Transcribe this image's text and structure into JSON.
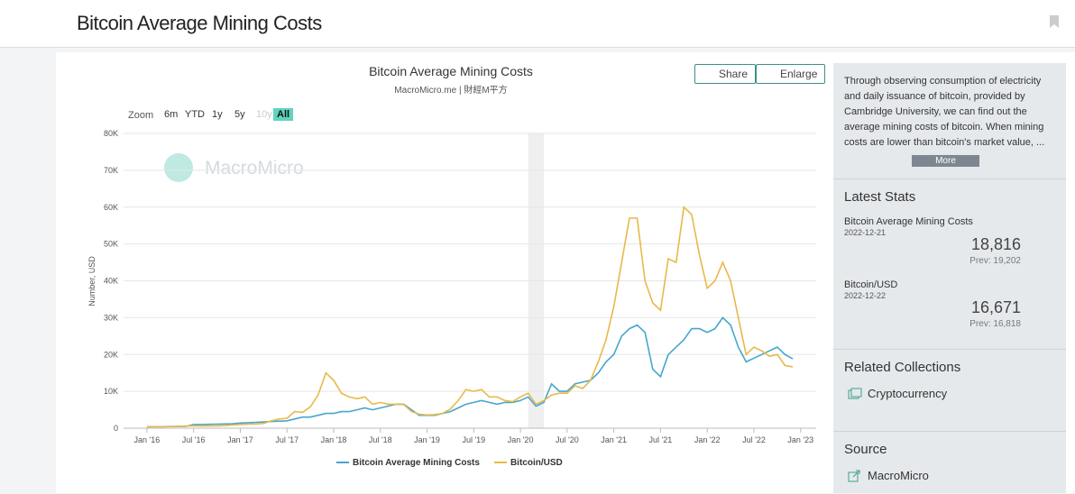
{
  "header": {
    "title": "Bitcoin Average Mining Costs"
  },
  "toolbar": {
    "share": "Share",
    "enlarge": "Enlarge",
    "zoom": "Zoom",
    "ranges": [
      "6m",
      "YTD",
      "1y",
      "5y",
      "10y",
      "All"
    ]
  },
  "chart_data": {
    "type": "line",
    "title": "Bitcoin Average Mining Costs",
    "subtitle": "MacroMicro.me | 財經M平方",
    "watermark": "MacroMicro",
    "y_label": "Number, USD",
    "x": [
      "2016-01",
      "2016-02",
      "2016-03",
      "2016-04",
      "2016-05",
      "2016-06",
      "2016-07",
      "2016-08",
      "2016-09",
      "2016-10",
      "2016-11",
      "2016-12",
      "2017-01",
      "2017-02",
      "2017-03",
      "2017-04",
      "2017-05",
      "2017-06",
      "2017-07",
      "2017-08",
      "2017-09",
      "2017-10",
      "2017-11",
      "2017-12",
      "2018-01",
      "2018-02",
      "2018-03",
      "2018-04",
      "2018-05",
      "2018-06",
      "2018-07",
      "2018-08",
      "2018-09",
      "2018-10",
      "2018-11",
      "2018-12",
      "2019-01",
      "2019-02",
      "2019-03",
      "2019-04",
      "2019-05",
      "2019-06",
      "2019-07",
      "2019-08",
      "2019-09",
      "2019-10",
      "2019-11",
      "2019-12",
      "2020-01",
      "2020-02",
      "2020-03",
      "2020-04",
      "2020-05",
      "2020-06",
      "2020-07",
      "2020-08",
      "2020-09",
      "2020-10",
      "2020-11",
      "2020-12",
      "2021-01",
      "2021-02",
      "2021-03",
      "2021-04",
      "2021-05",
      "2021-06",
      "2021-07",
      "2021-08",
      "2021-09",
      "2021-10",
      "2021-11",
      "2021-12",
      "2022-01",
      "2022-02",
      "2022-03",
      "2022-04",
      "2022-05",
      "2022-06",
      "2022-07",
      "2022-08",
      "2022-09",
      "2022-10",
      "2022-11",
      "2022-12"
    ],
    "series": [
      {
        "name": "Bitcoin Average Mining Costs",
        "color": "#46a6cf",
        "values": [
          400,
          420,
          420,
          450,
          470,
          500,
          1000,
          1000,
          1050,
          1100,
          1150,
          1200,
          1400,
          1500,
          1600,
          1700,
          1800,
          1900,
          2000,
          2500,
          3000,
          3000,
          3500,
          4000,
          4000,
          4500,
          4500,
          5000,
          5500,
          5000,
          5500,
          6000,
          6500,
          6500,
          5000,
          3500,
          3500,
          3500,
          4000,
          4500,
          5500,
          6500,
          7000,
          7500,
          7000,
          6500,
          7000,
          7000,
          7500,
          8500,
          6000,
          7000,
          12000,
          10000,
          10000,
          12000,
          12500,
          13000,
          15000,
          18000,
          20000,
          25000,
          27000,
          28000,
          26000,
          16000,
          14000,
          20000,
          22000,
          24000,
          27000,
          27000,
          26000,
          27000,
          30000,
          28000,
          22000,
          18000,
          19000,
          20000,
          21000,
          22000,
          20000,
          18816
        ]
      },
      {
        "name": "Bitcoin/USD",
        "color": "#e8b948",
        "values": [
          400,
          420,
          410,
          430,
          450,
          600,
          670,
          580,
          600,
          630,
          720,
          900,
          1000,
          1100,
          1150,
          1300,
          2000,
          2500,
          2700,
          4500,
          4300,
          5800,
          9000,
          15000,
          13000,
          9500,
          8500,
          8000,
          8500,
          6500,
          7000,
          6500,
          6500,
          6400,
          4500,
          3800,
          3600,
          3700,
          4000,
          5200,
          7500,
          10500,
          10000,
          10500,
          8500,
          8500,
          7500,
          7200,
          8500,
          9500,
          6500,
          7500,
          9000,
          9500,
          9500,
          11500,
          10800,
          13000,
          18000,
          24000,
          33000,
          45000,
          57000,
          57000,
          40000,
          34000,
          32000,
          46000,
          45000,
          60000,
          58000,
          47000,
          38000,
          40000,
          45000,
          40000,
          30000,
          20000,
          22000,
          21000,
          19500,
          20000,
          17000,
          16671
        ]
      }
    ],
    "shaded_range": [
      "2020-02",
      "2020-04"
    ],
    "xlim": [
      "2015-10",
      "2023-03"
    ],
    "xticks": [
      {
        "value": "2016-01",
        "label": "Jan '16"
      },
      {
        "value": "2016-07",
        "label": "Jul '16"
      },
      {
        "value": "2017-01",
        "label": "Jan '17"
      },
      {
        "value": "2017-07",
        "label": "Jul '17"
      },
      {
        "value": "2018-01",
        "label": "Jan '18"
      },
      {
        "value": "2018-07",
        "label": "Jul '18"
      },
      {
        "value": "2019-01",
        "label": "Jan '19"
      },
      {
        "value": "2019-07",
        "label": "Jul '19"
      },
      {
        "value": "2020-01",
        "label": "Jan '20"
      },
      {
        "value": "2020-07",
        "label": "Jul '20"
      },
      {
        "value": "2021-01",
        "label": "Jan '21"
      },
      {
        "value": "2021-07",
        "label": "Jul '21"
      },
      {
        "value": "2022-01",
        "label": "Jan '22"
      },
      {
        "value": "2022-07",
        "label": "Jul '22"
      },
      {
        "value": "2023-01",
        "label": "Jan '23"
      }
    ],
    "ylim": [
      0,
      80000
    ],
    "yticks": [
      0,
      {
        "value": 10000,
        "label": "10K"
      },
      {
        "value": 20000,
        "label": "20K"
      },
      {
        "value": 30000,
        "label": "30K"
      },
      {
        "value": 40000,
        "label": "40K"
      },
      {
        "value": 50000,
        "label": "50K"
      },
      {
        "value": 60000,
        "label": "60K"
      },
      {
        "value": 70000,
        "label": "70K"
      },
      {
        "value": 80000,
        "label": "80K"
      }
    ],
    "grid": true,
    "legend": "bottom"
  },
  "sidebar": {
    "description": "Through observing consumption of electricity and daily issuance of bitcoin, provided by Cambridge University, we can find out the average mining costs of bitcoin. When mining costs are lower than bitcoin's market value, ...",
    "more": "More",
    "latest_stats": {
      "title": "Latest Stats",
      "items": [
        {
          "name": "Bitcoin Average Mining Costs",
          "date": "2022-12-21",
          "value": "18,816",
          "prev": "Prev: 19,202"
        },
        {
          "name": "Bitcoin/USD",
          "date": "2022-12-22",
          "value": "16,671",
          "prev": "Prev: 16,818"
        }
      ]
    },
    "related": {
      "title": "Related Collections",
      "items": [
        "Cryptocurrency"
      ]
    },
    "source": {
      "title": "Source",
      "items": [
        "MacroMicro"
      ]
    }
  }
}
